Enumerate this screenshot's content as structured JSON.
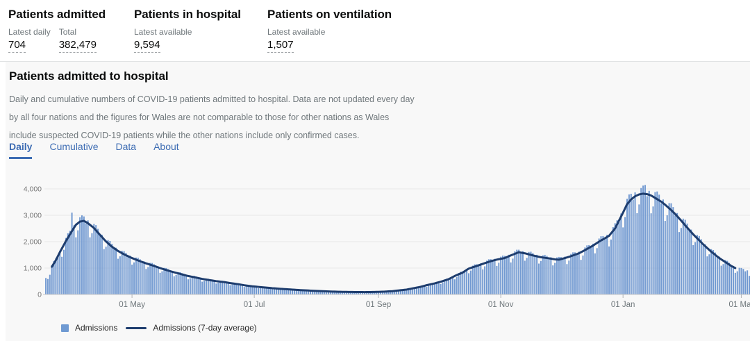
{
  "header_stats": {
    "cards": [
      {
        "title": "Patients admitted",
        "metrics": [
          {
            "label": "Latest daily",
            "value": "704"
          },
          {
            "label": "Total",
            "value": "382,479"
          }
        ]
      },
      {
        "title": "Patients in hospital",
        "metrics": [
          {
            "label": "Latest available",
            "value": "9,594"
          }
        ]
      },
      {
        "title": "Patients on ventilation",
        "metrics": [
          {
            "label": "Latest available",
            "value": "1,507"
          }
        ]
      }
    ]
  },
  "section": {
    "title": "Patients admitted to hospital",
    "description_lines": [
      "Daily and cumulative numbers of COVID-19 patients admitted to hospital. Data are not updated every day",
      "by all four nations and the figures for Wales are not comparable to those for other nations as Wales",
      "include suspected COVID-19 patients while the other nations include only confirmed cases."
    ],
    "tabs": [
      {
        "label": "Daily",
        "active": true
      },
      {
        "label": "Cumulative",
        "active": false
      },
      {
        "label": "Data",
        "active": false
      },
      {
        "label": "About",
        "active": false
      }
    ]
  },
  "chart_data": {
    "type": "bar",
    "series": [
      {
        "name": "Admissions",
        "type": "bar",
        "color": "#7199d1"
      },
      {
        "name": "Admissions (7-day average)",
        "type": "line",
        "color": "#1e3d6e"
      }
    ],
    "ylim": [
      0,
      4400
    ],
    "y_ticks": [
      0,
      1000,
      2000,
      3000,
      4000
    ],
    "y_tick_labels": [
      "0",
      "1,000",
      "2,000",
      "3,000",
      "4,000"
    ],
    "x_tick_labels": [
      "01 May",
      "01 Jul",
      "01 Sep",
      "01 Nov",
      "01 Jan",
      "01 Mar"
    ],
    "x_tick_days": [
      43,
      104,
      166,
      227,
      288,
      347
    ],
    "days_total": 352,
    "grid": "horizontal",
    "legend_position": "bottom-left",
    "avg_points": [
      [
        0,
        600
      ],
      [
        2,
        830
      ],
      [
        3,
        1050
      ],
      [
        5,
        1300
      ],
      [
        7,
        1600
      ],
      [
        10,
        2020
      ],
      [
        13,
        2400
      ],
      [
        15,
        2640
      ],
      [
        17,
        2760
      ],
      [
        19,
        2790
      ],
      [
        21,
        2700
      ],
      [
        24,
        2520
      ],
      [
        27,
        2260
      ],
      [
        30,
        2010
      ],
      [
        33,
        1810
      ],
      [
        36,
        1650
      ],
      [
        39,
        1520
      ],
      [
        43,
        1380
      ],
      [
        47,
        1260
      ],
      [
        50,
        1180
      ],
      [
        54,
        1080
      ],
      [
        57,
        1000
      ],
      [
        61,
        905
      ],
      [
        64,
        840
      ],
      [
        68,
        760
      ],
      [
        71,
        700
      ],
      [
        75,
        640
      ],
      [
        78,
        590
      ],
      [
        82,
        540
      ],
      [
        85,
        505
      ],
      [
        89,
        470
      ],
      [
        92,
        430
      ],
      [
        96,
        390
      ],
      [
        99,
        350
      ],
      [
        103,
        310
      ],
      [
        106,
        288
      ],
      [
        110,
        260
      ],
      [
        113,
        238
      ],
      [
        117,
        215
      ],
      [
        120,
        200
      ],
      [
        124,
        180
      ],
      [
        127,
        165
      ],
      [
        131,
        150
      ],
      [
        134,
        138
      ],
      [
        138,
        126
      ],
      [
        141,
        115
      ],
      [
        145,
        105
      ],
      [
        148,
        100
      ],
      [
        152,
        95
      ],
      [
        155,
        92
      ],
      [
        159,
        90
      ],
      [
        162,
        93
      ],
      [
        166,
        99
      ],
      [
        169,
        108
      ],
      [
        173,
        126
      ],
      [
        176,
        152
      ],
      [
        180,
        186
      ],
      [
        183,
        230
      ],
      [
        187,
        290
      ],
      [
        190,
        352
      ],
      [
        194,
        420
      ],
      [
        197,
        482
      ],
      [
        201,
        580
      ],
      [
        204,
        700
      ],
      [
        208,
        830
      ],
      [
        211,
        980
      ],
      [
        215,
        1080
      ],
      [
        218,
        1160
      ],
      [
        222,
        1260
      ],
      [
        225,
        1320
      ],
      [
        229,
        1380
      ],
      [
        232,
        1480
      ],
      [
        236,
        1600
      ],
      [
        239,
        1560
      ],
      [
        243,
        1480
      ],
      [
        247,
        1410
      ],
      [
        251,
        1370
      ],
      [
        254,
        1330
      ],
      [
        256,
        1318
      ],
      [
        259,
        1380
      ],
      [
        262,
        1450
      ],
      [
        266,
        1560
      ],
      [
        269,
        1680
      ],
      [
        273,
        1850
      ],
      [
        276,
        2000
      ],
      [
        279,
        2130
      ],
      [
        281,
        2220
      ],
      [
        284,
        2500
      ],
      [
        286,
        2800
      ],
      [
        288,
        3100
      ],
      [
        290,
        3420
      ],
      [
        292,
        3600
      ],
      [
        294,
        3720
      ],
      [
        296,
        3790
      ],
      [
        298,
        3820
      ],
      [
        300,
        3800
      ],
      [
        302,
        3750
      ],
      [
        304,
        3660
      ],
      [
        307,
        3520
      ],
      [
        309,
        3400
      ],
      [
        312,
        3200
      ],
      [
        314,
        3050
      ],
      [
        317,
        2800
      ],
      [
        319,
        2620
      ],
      [
        321,
        2450
      ],
      [
        323,
        2280
      ],
      [
        326,
        2050
      ],
      [
        328,
        1900
      ],
      [
        330,
        1760
      ],
      [
        332,
        1620
      ],
      [
        334,
        1500
      ],
      [
        336,
        1380
      ],
      [
        338,
        1280
      ],
      [
        340,
        1180
      ],
      [
        342,
        1080
      ],
      [
        344,
        1000
      ],
      [
        347,
        930
      ],
      [
        351,
        860
      ]
    ],
    "line_start_day": 3,
    "line_end_day": 344,
    "weekday_pattern": [
      1.04,
      0.82,
      0.9,
      1.06,
      1.08,
      1.06,
      0.98
    ],
    "bar_outliers": {
      "13": 3100,
      "299": 4150
    },
    "colors": {
      "bar": "#7199d1",
      "line": "#1e3d6e",
      "grid": "#e9e9e9",
      "axis": "#c8c8c8",
      "tick": "#b1b4b6",
      "axis_text": "#6f777b"
    }
  },
  "legend": [
    {
      "label": "Admissions",
      "swatch": "square"
    },
    {
      "label": "Admissions (7-day average)",
      "swatch": "line"
    }
  ],
  "theme": {
    "accent_blue": "#3d6cb3",
    "card_bg": "#f8f8f8",
    "divider": "#e1e3e4"
  }
}
